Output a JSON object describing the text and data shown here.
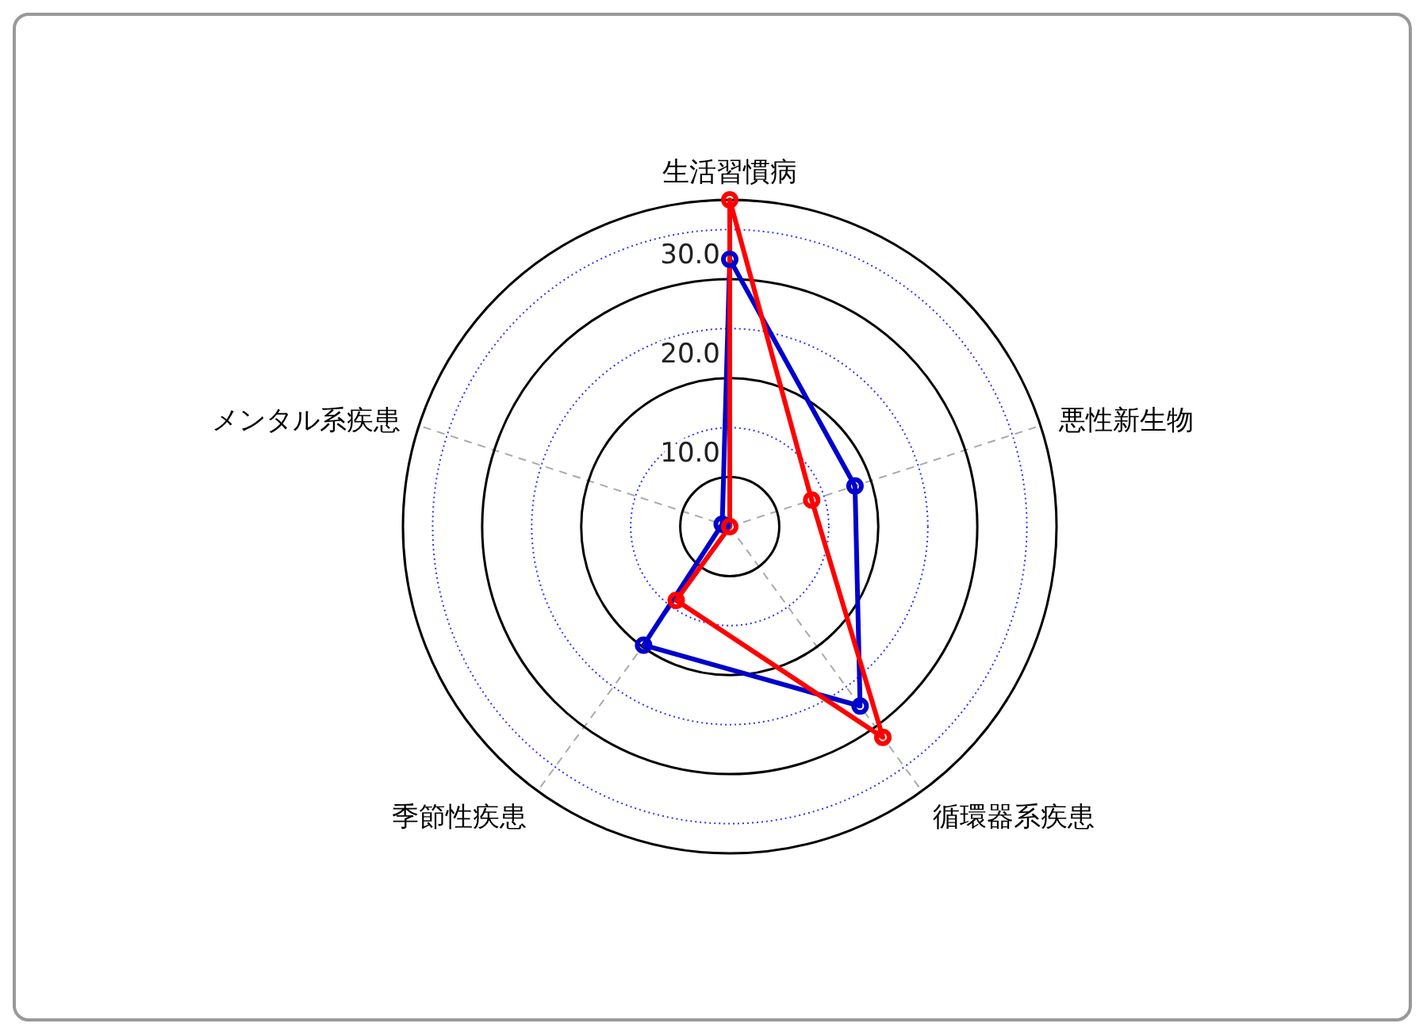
{
  "chart_data": {
    "type": "radar",
    "categories": [
      "生活習慣病",
      "悪性新生物",
      "循環器系疾患",
      "季節性疾患",
      "メンタル系疾患"
    ],
    "series": [
      {
        "color": "#0000cc",
        "values": [
          32,
          18.3,
          27.4,
          19.8,
          5.8
        ]
      },
      {
        "color": "#ff0000",
        "values": [
          38,
          13.7,
          31.3,
          14.2,
          5
        ]
      }
    ],
    "ylim": [
      5,
      38
    ],
    "yticks": [
      {
        "value": 10,
        "label": "10.0"
      },
      {
        "value": 20,
        "label": "20.0"
      },
      {
        "value": 30,
        "label": "30.0"
      }
    ],
    "grid": true,
    "marker": "circle"
  }
}
